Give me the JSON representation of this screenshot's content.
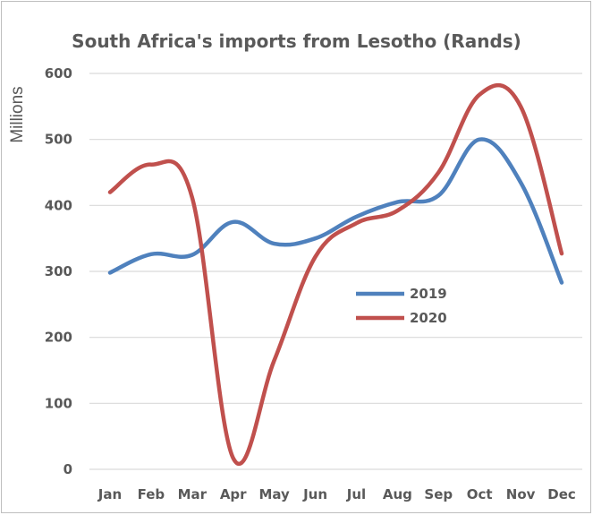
{
  "chart_data": {
    "type": "line",
    "title": "South Africa's imports from Lesotho (Rands)",
    "ylabel": "Millions",
    "xlabel": "",
    "categories": [
      "Jan",
      "Feb",
      "Mar",
      "Apr",
      "May",
      "Jun",
      "Jul",
      "Aug",
      "Sep",
      "Oct",
      "Nov",
      "Dec"
    ],
    "ylim": [
      0,
      600
    ],
    "yticks": [
      0,
      100,
      200,
      300,
      400,
      500,
      600
    ],
    "grid": "horizontal",
    "legend_position": "center-right",
    "series": [
      {
        "name": "2019",
        "color": "#4f81bd",
        "values": [
          298,
          326,
          325,
          375,
          342,
          350,
          383,
          405,
          415,
          500,
          435,
          283
        ]
      },
      {
        "name": "2020",
        "color": "#c0504d",
        "values": [
          420,
          462,
          412,
          17,
          165,
          322,
          373,
          392,
          450,
          568,
          550,
          327
        ]
      }
    ]
  }
}
